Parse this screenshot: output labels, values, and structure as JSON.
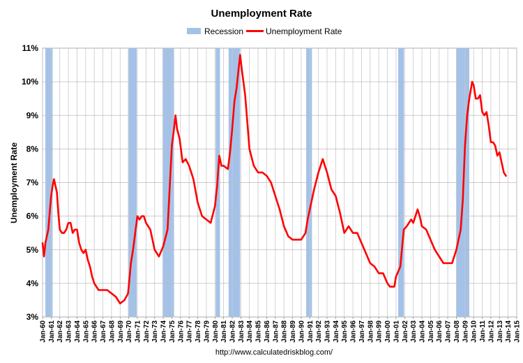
{
  "chart_data": {
    "type": "line",
    "title": "Unemployment Rate",
    "ylabel": "Unemployment Rate",
    "xlabel": "",
    "source": "http://www.calculatedriskblog.com/",
    "legend": {
      "position": "top-center",
      "entries": [
        {
          "name": "Recession",
          "color": "#a4c2e8",
          "kind": "bar"
        },
        {
          "name": "Unemployment Rate",
          "color": "#ff0000",
          "kind": "line"
        }
      ]
    },
    "ylim": [
      3,
      11
    ],
    "y_ticks": [
      {
        "value": 3,
        "label": "3%"
      },
      {
        "value": 4,
        "label": "4%"
      },
      {
        "value": 5,
        "label": "5%"
      },
      {
        "value": 6,
        "label": "6%"
      },
      {
        "value": 7,
        "label": "7%"
      },
      {
        "value": 8,
        "label": "8%"
      },
      {
        "value": 9,
        "label": "9%"
      },
      {
        "value": 10,
        "label": "10%"
      },
      {
        "value": 11,
        "label": "11%"
      }
    ],
    "xlim": [
      1960.0,
      2015.0
    ],
    "x_tick_labels": [
      "Jan-60",
      "Jan-61",
      "Jan-62",
      "Jan-63",
      "Jan-64",
      "Jan-65",
      "Jan-66",
      "Jan-67",
      "Jan-68",
      "Jan-69",
      "Jan-70",
      "Jan-71",
      "Jan-72",
      "Jan-73",
      "Jan-74",
      "Jan-75",
      "Jan-76",
      "Jan-77",
      "Jan-78",
      "Jan-79",
      "Jan-80",
      "Jan-81",
      "Jan-82",
      "Jan-83",
      "Jan-84",
      "Jan-85",
      "Jan-86",
      "Jan-87",
      "Jan-88",
      "Jan-89",
      "Jan-90",
      "Jan-91",
      "Jan-92",
      "Jan-93",
      "Jan-94",
      "Jan-95",
      "Jan-96",
      "Jan-97",
      "Jan-98",
      "Jan-99",
      "Jan-00",
      "Jan-01",
      "Jan-02",
      "Jan-03",
      "Jan-04",
      "Jan-05",
      "Jan-06",
      "Jan-07",
      "Jan-08",
      "Jan-09",
      "Jan-10",
      "Jan-11",
      "Jan-12",
      "Jan-13",
      "Jan-14",
      "Jan-15"
    ],
    "grid": true,
    "recessions": [
      {
        "start": 1960.33,
        "end": 1961.17
      },
      {
        "start": 1969.92,
        "end": 1970.92
      },
      {
        "start": 1973.92,
        "end": 1975.25
      },
      {
        "start": 1980.08,
        "end": 1980.58
      },
      {
        "start": 1981.58,
        "end": 1982.92
      },
      {
        "start": 1990.58,
        "end": 1991.25
      },
      {
        "start": 2001.25,
        "end": 2001.92
      },
      {
        "start": 2008.0,
        "end": 2009.5
      }
    ],
    "series": [
      {
        "name": "Unemployment Rate",
        "color": "#ff0000",
        "x": [
          1960.0,
          1960.17,
          1960.33,
          1960.5,
          1960.67,
          1960.83,
          1961.0,
          1961.17,
          1961.33,
          1961.5,
          1961.67,
          1961.83,
          1962.0,
          1962.25,
          1962.5,
          1962.75,
          1963.0,
          1963.25,
          1963.5,
          1963.75,
          1964.0,
          1964.25,
          1964.5,
          1964.75,
          1965.0,
          1965.25,
          1965.5,
          1965.75,
          1966.0,
          1966.5,
          1967.0,
          1967.5,
          1968.0,
          1968.5,
          1969.0,
          1969.5,
          1969.92,
          1970.25,
          1970.5,
          1970.75,
          1971.0,
          1971.25,
          1971.5,
          1971.75,
          1972.0,
          1972.5,
          1973.0,
          1973.5,
          1974.0,
          1974.5,
          1975.0,
          1975.25,
          1975.42,
          1975.6,
          1975.9,
          1976.25,
          1976.6,
          1977.0,
          1977.5,
          1978.0,
          1978.5,
          1979.0,
          1979.5,
          1980.0,
          1980.25,
          1980.5,
          1980.75,
          1981.0,
          1981.5,
          1981.75,
          1982.0,
          1982.25,
          1982.5,
          1982.75,
          1982.92,
          1983.1,
          1983.5,
          1984.0,
          1984.5,
          1985.0,
          1985.5,
          1986.0,
          1986.5,
          1987.0,
          1987.5,
          1988.0,
          1988.5,
          1989.0,
          1989.5,
          1990.0,
          1990.5,
          1990.75,
          1991.0,
          1991.5,
          1992.0,
          1992.5,
          1993.0,
          1993.5,
          1994.0,
          1994.5,
          1995.0,
          1995.5,
          1996.0,
          1996.5,
          1997.0,
          1997.5,
          1998.0,
          1998.5,
          1999.0,
          1999.5,
          2000.0,
          2000.3,
          2000.8,
          2001.0,
          2001.5,
          2001.9,
          2002.25,
          2002.5,
          2002.75,
          2003.0,
          2003.25,
          2003.5,
          2003.75,
          2004.0,
          2004.5,
          2005.0,
          2005.5,
          2006.0,
          2006.5,
          2007.0,
          2007.5,
          2008.0,
          2008.5,
          2008.75,
          2009.0,
          2009.25,
          2009.5,
          2009.83,
          2010.0,
          2010.25,
          2010.5,
          2010.75,
          2011.0,
          2011.25,
          2011.5,
          2011.75,
          2012.0,
          2012.25,
          2012.5,
          2012.75,
          2013.0,
          2013.25,
          2013.5,
          2013.75
        ],
        "values": [
          5.2,
          4.8,
          5.2,
          5.4,
          5.6,
          6.1,
          6.6,
          6.9,
          7.1,
          6.9,
          6.7,
          6.1,
          5.6,
          5.5,
          5.5,
          5.6,
          5.8,
          5.8,
          5.5,
          5.6,
          5.6,
          5.2,
          5.0,
          4.9,
          5.0,
          4.7,
          4.5,
          4.2,
          4.0,
          3.8,
          3.8,
          3.8,
          3.7,
          3.6,
          3.4,
          3.5,
          3.7,
          4.6,
          5.0,
          5.5,
          6.0,
          5.9,
          6.0,
          6.0,
          5.8,
          5.6,
          5.0,
          4.8,
          5.1,
          5.6,
          8.1,
          8.6,
          9.0,
          8.6,
          8.3,
          7.6,
          7.7,
          7.5,
          7.1,
          6.4,
          6.0,
          5.9,
          5.8,
          6.3,
          6.9,
          7.8,
          7.5,
          7.5,
          7.4,
          7.9,
          8.6,
          9.4,
          9.8,
          10.4,
          10.8,
          10.4,
          9.6,
          8.0,
          7.5,
          7.3,
          7.3,
          7.2,
          7.0,
          6.6,
          6.2,
          5.7,
          5.4,
          5.3,
          5.3,
          5.3,
          5.5,
          5.9,
          6.2,
          6.8,
          7.3,
          7.7,
          7.3,
          6.8,
          6.6,
          6.1,
          5.5,
          5.7,
          5.5,
          5.5,
          5.2,
          4.9,
          4.6,
          4.5,
          4.3,
          4.3,
          4.0,
          3.9,
          3.9,
          4.2,
          4.5,
          5.6,
          5.7,
          5.8,
          5.9,
          5.8,
          6.0,
          6.2,
          6.0,
          5.7,
          5.6,
          5.3,
          5.0,
          4.8,
          4.6,
          4.6,
          4.6,
          5.0,
          5.6,
          6.5,
          8.1,
          9.0,
          9.5,
          10.0,
          9.9,
          9.5,
          9.5,
          9.6,
          9.1,
          9.0,
          9.1,
          8.7,
          8.2,
          8.2,
          8.1,
          7.8,
          7.9,
          7.6,
          7.3,
          7.2
        ]
      }
    ]
  }
}
